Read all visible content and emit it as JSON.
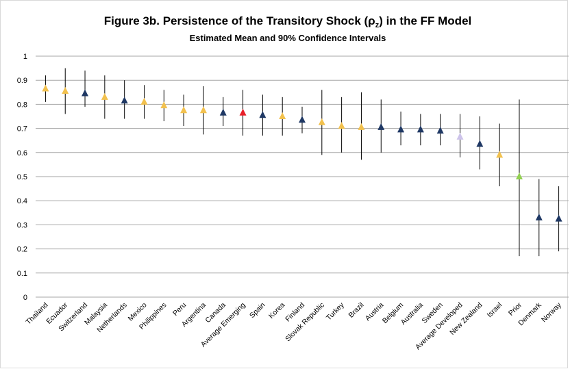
{
  "chart_data": {
    "type": "errorbar",
    "title_parts": [
      "Figure 3b. Persistence of the Transitory Shock (ρ",
      "z",
      ") in the FF Model"
    ],
    "subtitle": "Estimated Mean and 90% Confidence Intervals",
    "categories": [
      "Thailand",
      "Ecuador",
      "Switzerland",
      "Malaysia",
      "Netherlands",
      "Mexico",
      "Philippines",
      "Peru",
      "Argentina",
      "Canada",
      "Average Emerging",
      "Spain",
      "Korea",
      "Finland",
      "Slovak Republic",
      "Turkey",
      "Brazil",
      "Austria",
      "Belgium",
      "Australia",
      "Sweden",
      "Average Developed",
      "New Zealand",
      "Israel",
      "Prior",
      "Denmark",
      "Norway"
    ],
    "values": [
      0.865,
      0.855,
      0.845,
      0.83,
      0.815,
      0.81,
      0.795,
      0.775,
      0.775,
      0.765,
      0.765,
      0.755,
      0.75,
      0.735,
      0.725,
      0.71,
      0.705,
      0.705,
      0.695,
      0.695,
      0.69,
      0.665,
      0.635,
      0.59,
      0.5,
      0.33,
      0.325
    ],
    "lower": [
      0.81,
      0.76,
      0.79,
      0.74,
      0.74,
      0.74,
      0.73,
      0.71,
      0.675,
      0.71,
      0.67,
      0.67,
      0.67,
      0.68,
      0.59,
      0.6,
      0.57,
      0.6,
      0.63,
      0.63,
      0.63,
      0.58,
      0.53,
      0.46,
      0.17,
      0.17,
      0.19
    ],
    "upper": [
      0.92,
      0.95,
      0.94,
      0.92,
      0.9,
      0.88,
      0.86,
      0.84,
      0.875,
      0.83,
      0.86,
      0.84,
      0.83,
      0.79,
      0.86,
      0.83,
      0.85,
      0.82,
      0.77,
      0.76,
      0.76,
      0.76,
      0.75,
      0.72,
      0.82,
      0.49,
      0.46
    ],
    "colors": [
      "#f2c14e",
      "#f2c14e",
      "#1f3864",
      "#f2c14e",
      "#1f3864",
      "#f2c14e",
      "#f2c14e",
      "#f2c14e",
      "#f2c14e",
      "#1f3864",
      "#e8202a",
      "#1f3864",
      "#f2c14e",
      "#1f3864",
      "#f2c14e",
      "#f2c14e",
      "#f2c14e",
      "#1f3864",
      "#1f3864",
      "#1f3864",
      "#1f3864",
      "#cdc3ea",
      "#1f3864",
      "#f2c14e",
      "#92d050",
      "#1f3864",
      "#1f3864"
    ],
    "ylim": [
      0,
      1
    ],
    "yticks": [
      0,
      0.1,
      0.2,
      0.3,
      0.4,
      0.5,
      0.6,
      0.7,
      0.8,
      0.9,
      1
    ],
    "grid": true
  }
}
